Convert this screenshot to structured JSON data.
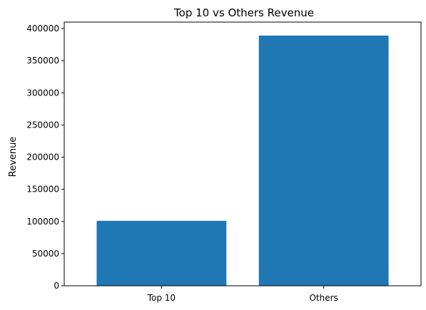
{
  "chart_data": {
    "type": "bar",
    "title": "Top 10 vs Others Revenue",
    "xlabel": "",
    "ylabel": "Revenue",
    "categories": [
      "Top 10",
      "Others"
    ],
    "values": [
      101000,
      389000
    ],
    "ylim": [
      0,
      410000
    ],
    "yticks": [
      0,
      50000,
      100000,
      150000,
      200000,
      250000,
      300000,
      350000,
      400000
    ],
    "grid": false,
    "legend": "none",
    "colors": {
      "bar": "#1f77b4",
      "axis": "#000000",
      "background": "#ffffff"
    }
  }
}
